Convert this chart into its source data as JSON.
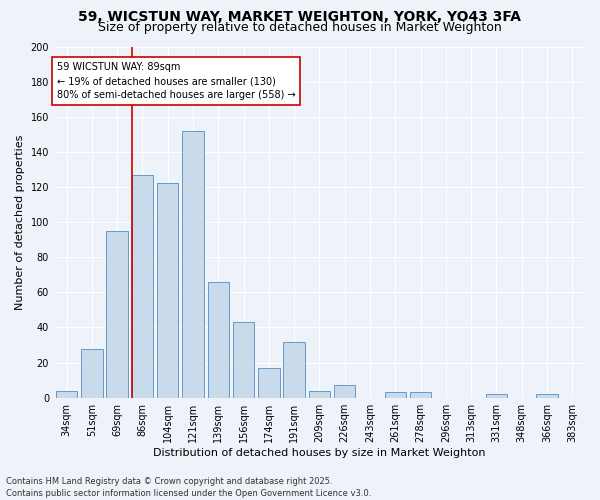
{
  "title1": "59, WICSTUN WAY, MARKET WEIGHTON, YORK, YO43 3FA",
  "title2": "Size of property relative to detached houses in Market Weighton",
  "xlabel": "Distribution of detached houses by size in Market Weighton",
  "ylabel": "Number of detached properties",
  "categories": [
    "34sqm",
    "51sqm",
    "69sqm",
    "86sqm",
    "104sqm",
    "121sqm",
    "139sqm",
    "156sqm",
    "174sqm",
    "191sqm",
    "209sqm",
    "226sqm",
    "243sqm",
    "261sqm",
    "278sqm",
    "296sqm",
    "313sqm",
    "331sqm",
    "348sqm",
    "366sqm",
    "383sqm"
  ],
  "values": [
    4,
    28,
    95,
    127,
    122,
    152,
    66,
    43,
    17,
    32,
    4,
    7,
    0,
    3,
    3,
    0,
    0,
    2,
    0,
    2,
    0
  ],
  "bar_color": "#c9daea",
  "bar_edge_color": "#6699cc",
  "vline_color": "#cc0000",
  "vline_x_index": 3,
  "annotation_text": "59 WICSTUN WAY: 89sqm\n← 19% of detached houses are smaller (130)\n80% of semi-detached houses are larger (558) →",
  "annotation_box_color": "#ffffff",
  "annotation_box_edge": "#cc0000",
  "ylim": [
    0,
    200
  ],
  "yticks": [
    0,
    20,
    40,
    60,
    80,
    100,
    120,
    140,
    160,
    180,
    200
  ],
  "footer": "Contains HM Land Registry data © Crown copyright and database right 2025.\nContains public sector information licensed under the Open Government Licence v3.0.",
  "background_color": "#eef2f9",
  "grid_color": "#ffffff",
  "title_fontsize": 10,
  "subtitle_fontsize": 9,
  "axis_label_fontsize": 8,
  "tick_fontsize": 7,
  "annotation_fontsize": 7,
  "footer_fontsize": 6
}
